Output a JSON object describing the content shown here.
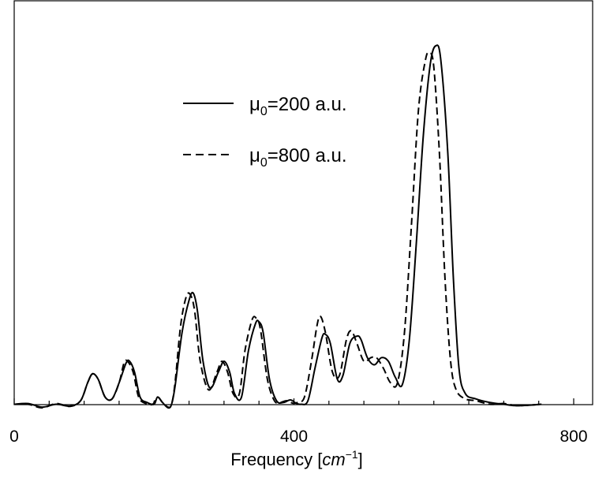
{
  "chart_data": {
    "type": "line",
    "xlabel": "Frequency [cm⁻¹]",
    "xlabel_parts": {
      "prefix": "Frequency [",
      "unit": "cm",
      "exponent": "−1",
      "suffix": "]"
    },
    "ylabel": "",
    "xlim": [
      0,
      800
    ],
    "ylim": [
      -0.01,
      1.0
    ],
    "x_ticks": [
      0,
      400,
      800
    ],
    "x_tick_labels": [
      "0",
      "400",
      "800"
    ],
    "legend_position": "upper-left",
    "grid": false,
    "series": [
      {
        "name": "μ0=200 a.u.",
        "name_parts": {
          "symbol": "μ",
          "subscript": "0",
          "rest": "=200 a.u."
        },
        "line_style": "solid",
        "color": "#000000",
        "points": [
          [
            0,
            0
          ],
          [
            20,
            0.002
          ],
          [
            40,
            -0.008
          ],
          [
            60,
            0
          ],
          [
            80,
            -0.005
          ],
          [
            95,
            0.01
          ],
          [
            105,
            0.06
          ],
          [
            112,
            0.085
          ],
          [
            120,
            0.07
          ],
          [
            130,
            0.02
          ],
          [
            140,
            0.015
          ],
          [
            150,
            0.06
          ],
          [
            160,
            0.115
          ],
          [
            165,
            0.12
          ],
          [
            172,
            0.09
          ],
          [
            180,
            0.02
          ],
          [
            190,
            0.005
          ],
          [
            200,
            0.0
          ],
          [
            205,
            0.02
          ],
          [
            212,
            0.005
          ],
          [
            220,
            -0.01
          ],
          [
            225,
            0
          ],
          [
            230,
            0.05
          ],
          [
            240,
            0.2
          ],
          [
            250,
            0.29
          ],
          [
            256,
            0.31
          ],
          [
            262,
            0.26
          ],
          [
            270,
            0.12
          ],
          [
            280,
            0.045
          ],
          [
            292,
            0.09
          ],
          [
            300,
            0.12
          ],
          [
            308,
            0.09
          ],
          [
            315,
            0.03
          ],
          [
            325,
            0.02
          ],
          [
            335,
            0.15
          ],
          [
            345,
            0.225
          ],
          [
            350,
            0.23
          ],
          [
            356,
            0.2
          ],
          [
            365,
            0.07
          ],
          [
            375,
            0.01
          ],
          [
            385,
            0.005
          ],
          [
            395,
            0.012
          ],
          [
            403,
            0.003
          ],
          [
            410,
            0
          ],
          [
            420,
            0.01
          ],
          [
            430,
            0.1
          ],
          [
            440,
            0.185
          ],
          [
            445,
            0.195
          ],
          [
            452,
            0.17
          ],
          [
            462,
            0.07
          ],
          [
            470,
            0.08
          ],
          [
            480,
            0.17
          ],
          [
            490,
            0.19
          ],
          [
            496,
            0.18
          ],
          [
            505,
            0.13
          ],
          [
            515,
            0.11
          ],
          [
            525,
            0.13
          ],
          [
            535,
            0.12
          ],
          [
            545,
            0.075
          ],
          [
            555,
            0.055
          ],
          [
            565,
            0.18
          ],
          [
            575,
            0.45
          ],
          [
            585,
            0.75
          ],
          [
            595,
            0.95
          ],
          [
            603,
            1.0
          ],
          [
            610,
            0.96
          ],
          [
            620,
            0.7
          ],
          [
            628,
            0.35
          ],
          [
            636,
            0.1
          ],
          [
            645,
            0.03
          ],
          [
            660,
            0.015
          ],
          [
            680,
            0.005
          ],
          [
            700,
            0.0
          ],
          [
            720,
            -0.004
          ],
          [
            754,
            0.0
          ]
        ]
      },
      {
        "name": "μ0=800 a.u.",
        "name_parts": {
          "symbol": "μ",
          "subscript": "0",
          "rest": "=800 a.u."
        },
        "line_style": "dashed",
        "color": "#000000",
        "points": [
          [
            0,
            0
          ],
          [
            20,
            0
          ],
          [
            40,
            -0.01
          ],
          [
            60,
            0.002
          ],
          [
            80,
            -0.006
          ],
          [
            95,
            0.01
          ],
          [
            105,
            0.06
          ],
          [
            112,
            0.085
          ],
          [
            120,
            0.07
          ],
          [
            130,
            0.02
          ],
          [
            140,
            0.015
          ],
          [
            150,
            0.06
          ],
          [
            157,
            0.115
          ],
          [
            162,
            0.12
          ],
          [
            170,
            0.09
          ],
          [
            178,
            0.02
          ],
          [
            188,
            0.002
          ],
          [
            198,
            0.0
          ],
          [
            205,
            0.02
          ],
          [
            212,
            0.005
          ],
          [
            220,
            -0.008
          ],
          [
            225,
            0
          ],
          [
            230,
            0.06
          ],
          [
            238,
            0.22
          ],
          [
            246,
            0.3
          ],
          [
            252,
            0.305
          ],
          [
            258,
            0.26
          ],
          [
            266,
            0.12
          ],
          [
            278,
            0.04
          ],
          [
            290,
            0.09
          ],
          [
            297,
            0.12
          ],
          [
            305,
            0.09
          ],
          [
            313,
            0.03
          ],
          [
            322,
            0.03
          ],
          [
            330,
            0.15
          ],
          [
            340,
            0.235
          ],
          [
            346,
            0.24
          ],
          [
            352,
            0.21
          ],
          [
            362,
            0.07
          ],
          [
            372,
            0.01
          ],
          [
            380,
            0.005
          ],
          [
            390,
            0.01
          ],
          [
            398,
            0.003
          ],
          [
            405,
            0.005
          ],
          [
            415,
            0.02
          ],
          [
            425,
            0.12
          ],
          [
            433,
            0.22
          ],
          [
            438,
            0.245
          ],
          [
            445,
            0.2
          ],
          [
            455,
            0.09
          ],
          [
            465,
            0.08
          ],
          [
            475,
            0.18
          ],
          [
            482,
            0.205
          ],
          [
            490,
            0.17
          ],
          [
            500,
            0.12
          ],
          [
            510,
            0.13
          ],
          [
            518,
            0.13
          ],
          [
            528,
            0.1
          ],
          [
            538,
            0.06
          ],
          [
            548,
            0.06
          ],
          [
            558,
            0.2
          ],
          [
            568,
            0.5
          ],
          [
            578,
            0.82
          ],
          [
            588,
            0.96
          ],
          [
            594,
            0.98
          ],
          [
            600,
            0.94
          ],
          [
            608,
            0.7
          ],
          [
            616,
            0.35
          ],
          [
            624,
            0.12
          ],
          [
            632,
            0.04
          ],
          [
            645,
            0.015
          ],
          [
            660,
            0.01
          ],
          [
            680,
            0.0
          ],
          [
            700,
            0.002
          ],
          [
            720,
            -0.004
          ],
          [
            754,
            0.0
          ]
        ]
      }
    ]
  }
}
